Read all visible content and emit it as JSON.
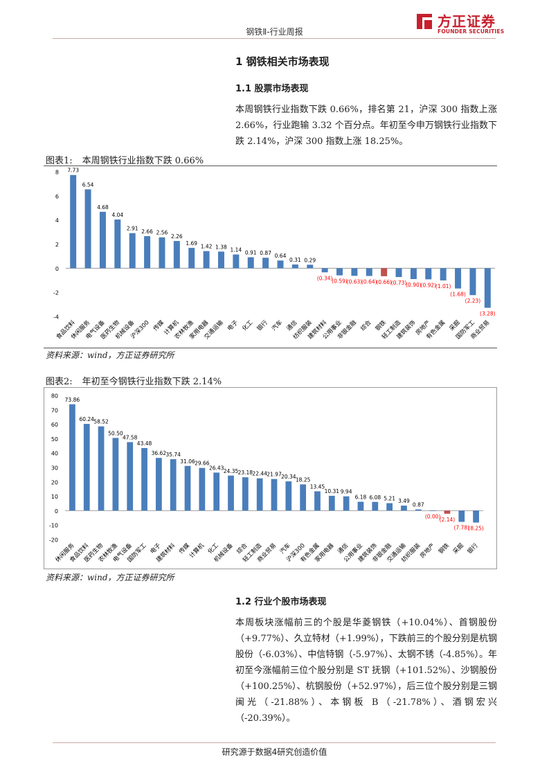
{
  "header": {
    "title": "钢铁Ⅱ-行业周报",
    "logo_cn": "方正证券",
    "logo_en": "FOUNDER SECURITIES",
    "logo_color": "#c7202d"
  },
  "section1": {
    "title": "1 钢铁相关市场表现"
  },
  "section11": {
    "title": "1.1 股票市场表现",
    "para": "本周钢铁行业指数下跌 0.66%，排名第 21，沪深 300 指数上涨 2.66%，行业跑输 3.32 个百分点。年初至今申万钢铁行业指数下跌 2.14%，沪深 300 指数上涨 18.25%。"
  },
  "fig1": {
    "label": "图表1:",
    "title": "本周钢铁行业指数下跌 0.66%",
    "source": "资料来源：wind，方正证券研究所"
  },
  "fig2": {
    "label": "图表2:",
    "title": "年初至今钢铁行业指数下跌 2.14%",
    "source": "资料来源：wind，方正证券研究所"
  },
  "section12": {
    "title": "1.2 行业个股市场表现",
    "para": "本周板块涨幅前三的个股是华菱钢铁（+10.04%）、首钢股份（+9.77%）、久立特材（+1.99%），下跌前三的个股分别是杭钢股份（-6.03%）、中信特钢（-5.97%）、太钢不锈（-4.85%）。年初至今涨幅前三位个股分别是 ST 抚钢（+101.52%）、沙钢股份（+100.25%）、杭钢股份（+52.97%），后三位个股分别是三钢闽光（-21.88%）、本钢板 B（-21.78%）、酒钢宏兴（-20.39%）。"
  },
  "footer": {
    "text": "研究源于数据4研究创造价值"
  },
  "colors": {
    "positive_bar": "#4a7ebb",
    "highlight_bar": "#c0504d",
    "negative_label": "#ff0000"
  },
  "chart_data": [
    {
      "type": "bar",
      "title": "本周钢铁行业指数下跌 0.66%",
      "categories": [
        "食品饮料",
        "休闲服务",
        "电气设备",
        "医药生物",
        "机械设备",
        "沪深300",
        "传媒",
        "计算机",
        "农林牧渔",
        "家用电器",
        "交通运输",
        "电子",
        "化工",
        "银行",
        "汽车",
        "通信",
        "纺织服装",
        "建筑材料",
        "公用事业",
        "非银金融",
        "综合",
        "钢铁",
        "轻工制造",
        "建筑装饰",
        "房地产",
        "有色金属",
        "采掘",
        "国防军工",
        "商业贸易"
      ],
      "values": [
        7.73,
        6.54,
        4.68,
        4.04,
        2.91,
        2.66,
        2.56,
        2.26,
        1.69,
        1.42,
        1.38,
        1.14,
        0.91,
        0.87,
        0.64,
        0.31,
        0.29,
        -0.34,
        -0.59,
        -0.63,
        -0.64,
        -0.66,
        -0.73,
        -0.9,
        -0.92,
        -1.01,
        -1.68,
        -2.23,
        -3.28
      ],
      "data_labels": [
        "7.73",
        "6.54",
        "4.68",
        "4.04",
        "2.91",
        "2.66",
        "2.56",
        "2.26",
        "1.69",
        "1.42",
        "1.38",
        "1.14",
        "0.91",
        "0.87",
        "0.64",
        "0.31",
        "0.29",
        "(0.34)",
        "(0.59)",
        "(0.63)",
        "(0.64)",
        "(0.66)",
        "(0.73)",
        "(0.90)",
        "(0.92)",
        "(1.01)",
        "(1.68)",
        "(2.23)",
        "(3.28)"
      ],
      "highlight": "钢铁",
      "ylim": [
        -4,
        8
      ],
      "yticks": [
        -4,
        -2,
        0,
        2,
        4,
        6,
        8
      ],
      "xlabel": "",
      "ylabel": "",
      "grid": false
    },
    {
      "type": "bar",
      "title": "年初至今钢铁行业指数下跌 2.14%",
      "categories": [
        "休闲服务",
        "食品饮料",
        "医药生物",
        "农林牧渔",
        "电气设备",
        "国防军工",
        "电子",
        "建筑材料",
        "传媒",
        "计算机",
        "化工",
        "机械设备",
        "综合",
        "轻工制造",
        "商业贸易",
        "汽车",
        "沪深300",
        "有色金属",
        "家用电器",
        "通信",
        "公用事业",
        "建筑装饰",
        "非银金融",
        "交通运输",
        "纺织服装",
        "房地产",
        "钢铁",
        "采掘",
        "银行"
      ],
      "values": [
        73.86,
        60.24,
        58.52,
        50.5,
        47.58,
        43.48,
        36.62,
        35.74,
        31.06,
        29.66,
        26.43,
        24.35,
        23.18,
        22.44,
        21.97,
        20.34,
        18.25,
        13.45,
        10.31,
        9.94,
        6.18,
        6.08,
        5.21,
        3.49,
        0.87,
        0.0,
        -2.14,
        -7.78,
        -8.25
      ],
      "data_labels": [
        "73.86",
        "60.24",
        "58.52",
        "50.50",
        "47.58",
        "43.48",
        "36.62",
        "35.74",
        "31.06",
        "29.66",
        "26.43",
        "24.35",
        "23.18",
        "22.44",
        "21.97",
        "20.34",
        "18.25",
        "13.45",
        "10.31",
        "9.94",
        "6.18",
        "6.08",
        "5.21",
        "3.49",
        "0.87",
        "(0.00)",
        "(2.14)",
        "(7.78)",
        "(8.25)"
      ],
      "highlight": "钢铁",
      "ylim": [
        -20,
        80
      ],
      "yticks": [
        -20,
        -10,
        0,
        10,
        20,
        30,
        40,
        50,
        60,
        70,
        80
      ],
      "xlabel": "",
      "ylabel": "",
      "grid": false
    }
  ]
}
